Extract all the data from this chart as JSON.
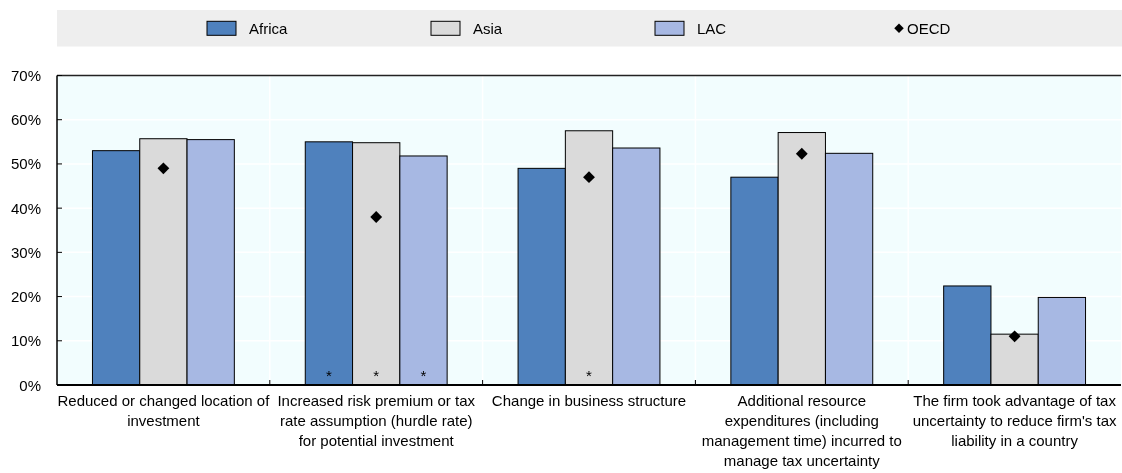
{
  "chart_data": {
    "type": "bar",
    "categories": [
      "Reduced or changed location of investment",
      "Increased risk premium or tax rate assumption (hurdle rate) for potential investment",
      "Change in business structure",
      "Additional resource expenditures (including management time) incurred to manage tax uncertainty",
      "The firm took advantage of tax uncertainty to reduce firm's tax liability in a country"
    ],
    "series": [
      {
        "name": "Africa",
        "color": "#4f81bd",
        "values": [
          53,
          55,
          49,
          47,
          22.4
        ],
        "value_labels": [
          null,
          "*",
          null,
          null,
          null
        ]
      },
      {
        "name": "Asia",
        "color": "#dadada",
        "values": [
          55.7,
          54.8,
          57.5,
          57.1,
          11.5
        ],
        "value_labels": [
          null,
          "*",
          "*",
          null,
          null
        ]
      },
      {
        "name": "LAC",
        "color": "#a7b8e3",
        "values": [
          55.5,
          51.8,
          53.6,
          52.4,
          19.8
        ],
        "value_labels": [
          null,
          "*",
          null,
          null,
          null
        ]
      },
      {
        "name": "OECD",
        "type": "scatter",
        "color": "#000000",
        "marker": "diamond",
        "x": [
          "Reduced or changed location of investment",
          "Increased risk premium or tax rate assumption (hurdle rate) for potential investment",
          "Change in business structure",
          "Additional resource expenditures (including management time) incurred to manage tax uncertainty",
          "The firm took advantage of tax uncertainty to reduce firm's tax liability in a country"
        ],
        "values": [
          49,
          38,
          47,
          52.3,
          11
        ]
      }
    ],
    "ylim": [
      0,
      70
    ],
    "yticks": [
      {
        "value": 0,
        "label": "0%"
      },
      {
        "value": 10,
        "label": "10%"
      },
      {
        "value": 20,
        "label": "20%"
      },
      {
        "value": 30,
        "label": "30%"
      },
      {
        "value": 40,
        "label": "40%"
      },
      {
        "value": 50,
        "label": "50%"
      },
      {
        "value": 60,
        "label": "60%"
      },
      {
        "value": 70,
        "label": "70%"
      }
    ],
    "grid": true,
    "legend": "top"
  }
}
